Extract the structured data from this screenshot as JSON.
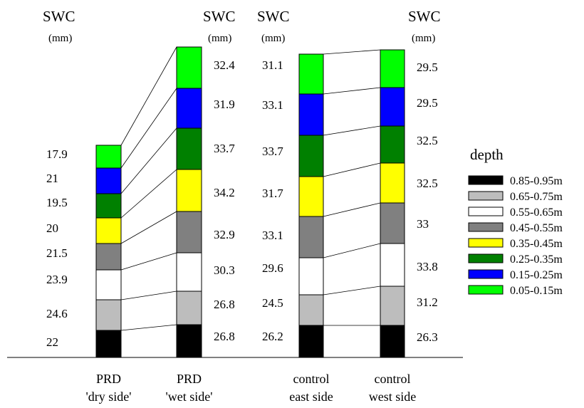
{
  "chart_data": {
    "type": "bar",
    "stacked": true,
    "value_label": "SWC",
    "unit_label": "(mm)",
    "legend": {
      "title": "depth",
      "placement": "right",
      "entries": [
        {
          "label": "0.85-0.95m",
          "color": "#000000"
        },
        {
          "label": "0.65-0.75m",
          "color": "#bdbdbd"
        },
        {
          "label": "0.55-0.65m",
          "color": "#ffffff"
        },
        {
          "label": "0.45-0.55m",
          "color": "#808080"
        },
        {
          "label": "0.35-0.45m",
          "color": "#ffff00"
        },
        {
          "label": "0.25-0.35m",
          "color": "#008000"
        },
        {
          "label": "0.15-0.25m",
          "color": "#0000ff"
        },
        {
          "label": "0.05-0.15m",
          "color": "#00ff00"
        }
      ]
    },
    "columns": [
      {
        "label_line1": "PRD",
        "label_line2": "'dry side'",
        "label_side": "left",
        "header": true,
        "values_top_to_bottom": [
          "17.9",
          "21",
          "19.5",
          "20",
          "21.5",
          "23.9",
          "24.6",
          "22"
        ]
      },
      {
        "label_line1": "PRD",
        "label_line2": "'wet side'",
        "label_side": "right",
        "header": true,
        "values_top_to_bottom": [
          "32.4",
          "31.9",
          "33.7",
          "34.2",
          "32.9",
          "30.3",
          "26.8",
          "26.8"
        ]
      },
      {
        "label_line1": "control",
        "label_line2": "east side",
        "label_side": "left",
        "header": true,
        "values_top_to_bottom": [
          "31.1",
          "33.1",
          "33.7",
          "31.7",
          "33.1",
          "29.6",
          "24.5",
          "26.2"
        ]
      },
      {
        "label_line1": "control",
        "label_line2": "west side",
        "label_side": "right",
        "header": true,
        "values_top_to_bottom": [
          "29.5",
          "29.5",
          "32.5",
          "32.5",
          "33",
          "33.8",
          "31.2",
          "26.3"
        ]
      }
    ]
  }
}
